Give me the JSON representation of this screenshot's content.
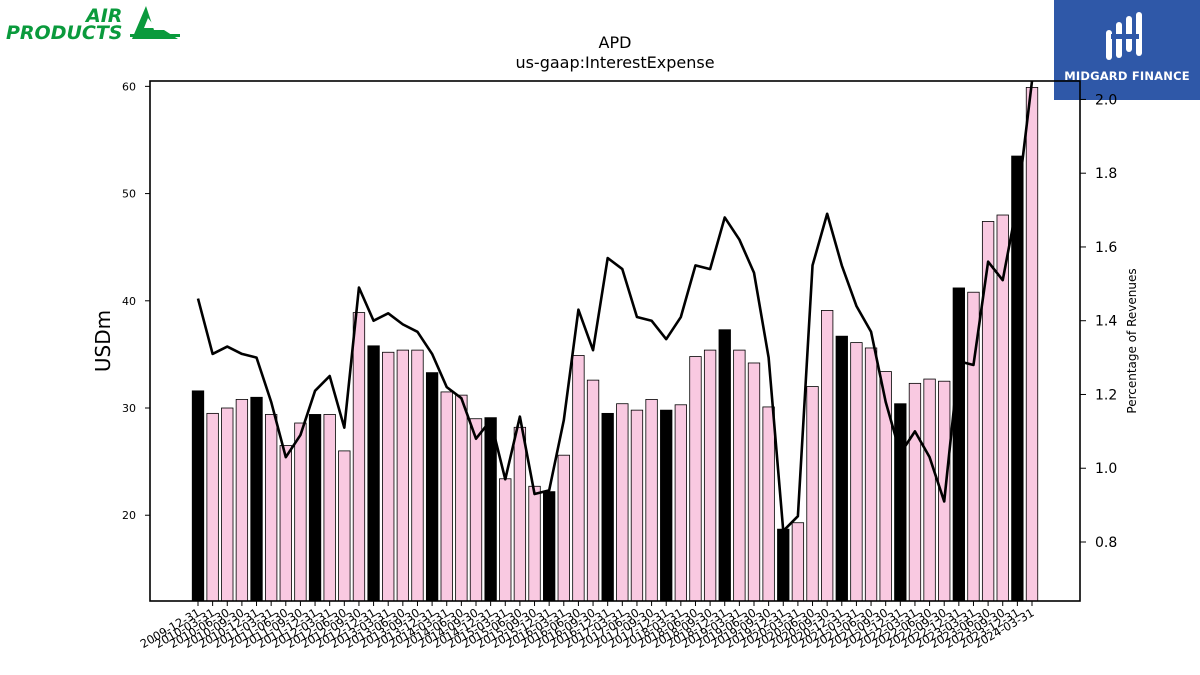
{
  "logos": {
    "left": {
      "line1": "AIR",
      "line2": "PRODUCTS",
      "color": "#0a9a3c"
    },
    "right": {
      "text": "MIDGARD FINANCE",
      "background": "#2f58a8"
    }
  },
  "chart_data": {
    "type": "bar",
    "title": "APD",
    "subtitle": "us-gaap:InterestExpense",
    "ylabel": "USDm",
    "y2label": "Percentage of Revenues",
    "ylim": [
      12,
      60.5
    ],
    "yticks": [
      20,
      30,
      40,
      50,
      60
    ],
    "y2lim": [
      0.64,
      2.05
    ],
    "y2ticks": [
      0.8,
      1.0,
      1.2,
      1.4,
      1.6,
      1.8,
      2.0
    ],
    "y2ticklabels": [
      "0.8",
      "1.0",
      "1.2",
      "1.4",
      "1.6",
      "1.8",
      "2.0"
    ],
    "grid": false,
    "colors": {
      "annual_bar": "#000000",
      "quarter_bar": "#f9c9e1",
      "line": "#000000"
    },
    "categories": [
      "2009-12-31",
      "2010-03-31",
      "2010-06-30",
      "2010-09-30",
      "2010-12-31",
      "2011-03-31",
      "2011-06-30",
      "2011-09-30",
      "2011-12-31",
      "2012-03-31",
      "2012-06-30",
      "2012-09-30",
      "2012-12-31",
      "2013-03-31",
      "2013-06-30",
      "2013-09-30",
      "2013-12-31",
      "2014-03-31",
      "2014-06-30",
      "2014-09-30",
      "2014-12-31",
      "2015-03-31",
      "2015-06-30",
      "2015-09-30",
      "2015-12-31",
      "2016-03-31",
      "2016-06-30",
      "2016-09-30",
      "2016-12-31",
      "2017-03-31",
      "2017-06-30",
      "2017-09-30",
      "2017-12-31",
      "2018-03-31",
      "2018-06-30",
      "2018-09-30",
      "2018-12-31",
      "2019-03-31",
      "2019-06-30",
      "2019-09-30",
      "2019-12-31",
      "2020-03-31",
      "2020-06-30",
      "2020-09-30",
      "2020-12-31",
      "2021-03-31",
      "2021-06-30",
      "2021-09-30",
      "2021-12-31",
      "2022-03-31",
      "2022-06-30",
      "2022-09-30",
      "2022-12-31",
      "2023-03-31",
      "2023-06-30",
      "2023-09-30",
      "2023-12-31",
      "2024-03-31"
    ],
    "series": [
      {
        "kind": "bar",
        "values": [
          31.6,
          29.5,
          30.0,
          30.8,
          31.0,
          29.4,
          26.5,
          28.6,
          29.4,
          29.4,
          26.0,
          38.9,
          35.8,
          35.2,
          35.4,
          35.4,
          33.3,
          31.5,
          31.2,
          29.0,
          29.1,
          23.4,
          28.2,
          22.7,
          22.2,
          25.6,
          34.9,
          32.6,
          29.5,
          30.4,
          29.8,
          30.8,
          29.8,
          30.3,
          34.8,
          35.4,
          37.3,
          35.4,
          34.2,
          30.1,
          18.7,
          19.3,
          32.0,
          39.1,
          36.7,
          36.1,
          35.6,
          33.4,
          30.4,
          32.3,
          32.7,
          32.5,
          41.2,
          40.8,
          47.4,
          48.0,
          53.5,
          59.9
        ]
      },
      {
        "kind": "line",
        "axis": "right",
        "values": [
          1.46,
          1.31,
          1.33,
          1.31,
          1.3,
          1.18,
          1.03,
          1.09,
          1.21,
          1.25,
          1.11,
          1.49,
          1.4,
          1.42,
          1.39,
          1.37,
          1.31,
          1.22,
          1.19,
          1.08,
          1.13,
          0.97,
          1.14,
          0.93,
          0.94,
          1.13,
          1.43,
          1.32,
          1.57,
          1.54,
          1.41,
          1.4,
          1.35,
          1.41,
          1.55,
          1.54,
          1.68,
          1.62,
          1.53,
          1.3,
          0.83,
          0.87,
          1.55,
          1.69,
          1.55,
          1.44,
          1.37,
          1.18,
          1.04,
          1.1,
          1.03,
          0.91,
          1.29,
          1.28,
          1.56,
          1.51,
          1.72,
          2.05
        ]
      }
    ]
  }
}
